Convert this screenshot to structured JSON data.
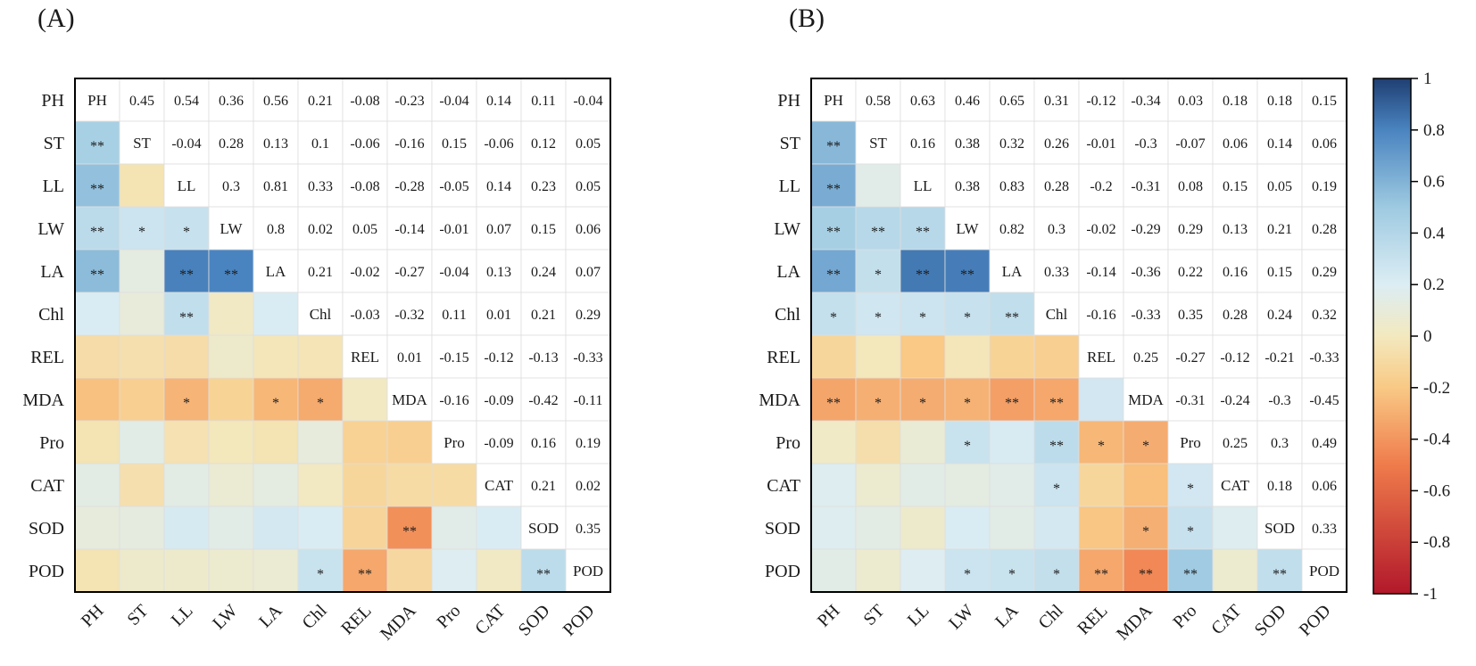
{
  "variables": [
    "PH",
    "ST",
    "LL",
    "LW",
    "LA",
    "Chl",
    "REL",
    "MDA",
    "Pro",
    "CAT",
    "SOD",
    "POD"
  ],
  "colorbar": {
    "ticks": [
      "1",
      "0.8",
      "0.6",
      "0.4",
      "0.2",
      "0",
      "-0.2",
      "-0.4",
      "-0.6",
      "-0.8",
      "-1"
    ],
    "stops": [
      {
        "v": -1.0,
        "color": "#b2182b"
      },
      {
        "v": -0.5,
        "color": "#ef7b4b"
      },
      {
        "v": -0.2,
        "color": "#f9c985"
      },
      {
        "v": 0.0,
        "color": "#f3e9bf"
      },
      {
        "v": 0.2,
        "color": "#dcedf4"
      },
      {
        "v": 0.5,
        "color": "#9ecae1"
      },
      {
        "v": 0.8,
        "color": "#4a84c0"
      },
      {
        "v": 1.0,
        "color": "#1f3f73"
      }
    ]
  },
  "chart_data": [
    {
      "type": "heatmap",
      "title": "(A)",
      "variables": [
        "PH",
        "ST",
        "LL",
        "LW",
        "LA",
        "Chl",
        "REL",
        "MDA",
        "Pro",
        "CAT",
        "SOD",
        "POD"
      ],
      "matrix": [
        [
          1,
          0.45,
          0.54,
          0.36,
          0.56,
          0.21,
          -0.08,
          -0.23,
          -0.04,
          0.14,
          0.11,
          -0.04
        ],
        [
          0.45,
          1,
          -0.04,
          0.28,
          0.13,
          0.1,
          -0.06,
          -0.16,
          0.15,
          -0.06,
          0.12,
          0.05
        ],
        [
          0.54,
          -0.04,
          1,
          0.3,
          0.81,
          0.33,
          -0.08,
          -0.28,
          -0.05,
          0.14,
          0.23,
          0.05
        ],
        [
          0.36,
          0.28,
          0.3,
          1,
          0.8,
          0.02,
          0.05,
          -0.14,
          -0.01,
          0.07,
          0.15,
          0.06
        ],
        [
          0.56,
          0.13,
          0.81,
          0.8,
          1,
          0.21,
          -0.02,
          -0.27,
          -0.04,
          0.13,
          0.24,
          0.07
        ],
        [
          0.21,
          0.1,
          0.33,
          0.02,
          0.21,
          1,
          -0.03,
          -0.32,
          0.11,
          0.01,
          0.21,
          0.29
        ],
        [
          -0.08,
          -0.06,
          -0.08,
          0.05,
          -0.02,
          -0.03,
          1,
          0.01,
          -0.15,
          -0.12,
          -0.13,
          -0.33
        ],
        [
          -0.23,
          -0.16,
          -0.28,
          -0.14,
          -0.27,
          -0.32,
          0.01,
          1,
          -0.16,
          -0.09,
          -0.42,
          -0.11
        ],
        [
          -0.04,
          0.15,
          -0.05,
          -0.01,
          -0.04,
          0.11,
          -0.15,
          -0.16,
          1,
          -0.09,
          0.16,
          0.19
        ],
        [
          0.14,
          -0.06,
          0.14,
          0.07,
          0.13,
          0.01,
          -0.12,
          -0.09,
          -0.09,
          1,
          0.21,
          0.02
        ],
        [
          0.11,
          0.12,
          0.23,
          0.15,
          0.24,
          0.21,
          -0.13,
          -0.42,
          0.16,
          0.21,
          1,
          0.35
        ],
        [
          -0.04,
          0.05,
          0.05,
          0.06,
          0.07,
          0.29,
          -0.33,
          -0.11,
          0.19,
          0.02,
          0.35,
          1
        ]
      ],
      "significance": [
        [
          "",
          "",
          "",
          "",
          "",
          "",
          "",
          "",
          "",
          "",
          "",
          ""
        ],
        [
          "**",
          "",
          "",
          "",
          "",
          "",
          "",
          "",
          "",
          "",
          "",
          ""
        ],
        [
          "**",
          "",
          "",
          "",
          "",
          "",
          "",
          "",
          "",
          "",
          "",
          ""
        ],
        [
          "**",
          "*",
          "*",
          "",
          "",
          "",
          "",
          "",
          "",
          "",
          "",
          ""
        ],
        [
          "**",
          "",
          "**",
          "**",
          "",
          "",
          "",
          "",
          "",
          "",
          "",
          ""
        ],
        [
          "",
          "",
          "**",
          "",
          "",
          "",
          "",
          "",
          "",
          "",
          "",
          ""
        ],
        [
          "",
          "",
          "",
          "",
          "",
          "",
          "",
          "",
          "",
          "",
          "",
          ""
        ],
        [
          "",
          "",
          "*",
          "",
          "*",
          "*",
          "",
          "",
          "",
          "",
          "",
          ""
        ],
        [
          "",
          "",
          "",
          "",
          "",
          "",
          "",
          "",
          "",
          "",
          "",
          ""
        ],
        [
          "",
          "",
          "",
          "",
          "",
          "",
          "",
          "",
          "",
          "",
          "",
          ""
        ],
        [
          "",
          "",
          "",
          "",
          "",
          "",
          "",
          "**",
          "",
          "",
          "",
          ""
        ],
        [
          "",
          "",
          "",
          "",
          "",
          "*",
          "**",
          "",
          "",
          "",
          "**",
          ""
        ]
      ],
      "ylim": [
        -1,
        1
      ]
    },
    {
      "type": "heatmap",
      "title": "(B)",
      "variables": [
        "PH",
        "ST",
        "LL",
        "LW",
        "LA",
        "Chl",
        "REL",
        "MDA",
        "Pro",
        "CAT",
        "SOD",
        "POD"
      ],
      "matrix": [
        [
          1,
          0.58,
          0.63,
          0.46,
          0.65,
          0.31,
          -0.12,
          -0.34,
          0.03,
          0.18,
          0.18,
          0.15
        ],
        [
          0.58,
          1,
          0.16,
          0.38,
          0.32,
          0.26,
          -0.01,
          -0.3,
          -0.07,
          0.06,
          0.14,
          0.06
        ],
        [
          0.63,
          0.16,
          1,
          0.38,
          0.83,
          0.28,
          -0.2,
          -0.31,
          0.08,
          0.15,
          0.05,
          0.19
        ],
        [
          0.46,
          0.38,
          0.38,
          1,
          0.82,
          0.3,
          -0.02,
          -0.29,
          0.29,
          0.13,
          0.21,
          0.28
        ],
        [
          0.65,
          0.32,
          0.83,
          0.82,
          1,
          0.33,
          -0.14,
          -0.36,
          0.22,
          0.16,
          0.15,
          0.29
        ],
        [
          0.31,
          0.26,
          0.28,
          0.3,
          0.33,
          1,
          -0.16,
          -0.33,
          0.35,
          0.28,
          0.24,
          0.32
        ],
        [
          -0.12,
          -0.01,
          -0.2,
          -0.02,
          -0.14,
          -0.16,
          1,
          0.25,
          -0.27,
          -0.12,
          -0.21,
          -0.33
        ],
        [
          -0.34,
          -0.3,
          -0.31,
          -0.29,
          -0.36,
          -0.33,
          0.25,
          1,
          -0.31,
          -0.24,
          -0.3,
          -0.45
        ],
        [
          0.03,
          -0.07,
          0.08,
          0.29,
          0.22,
          0.35,
          -0.27,
          -0.31,
          1,
          0.25,
          0.3,
          0.49
        ],
        [
          0.18,
          0.06,
          0.15,
          0.13,
          0.16,
          0.28,
          -0.12,
          -0.24,
          0.25,
          1,
          0.18,
          0.06
        ],
        [
          0.18,
          0.14,
          0.05,
          0.21,
          0.15,
          0.24,
          -0.21,
          -0.3,
          0.3,
          0.18,
          1,
          0.33
        ],
        [
          0.15,
          0.06,
          0.19,
          0.28,
          0.29,
          0.32,
          -0.33,
          -0.45,
          0.49,
          0.06,
          0.33,
          1
        ]
      ],
      "significance": [
        [
          "",
          "",
          "",
          "",
          "",
          "",
          "",
          "",
          "",
          "",
          "",
          ""
        ],
        [
          "**",
          "",
          "",
          "",
          "",
          "",
          "",
          "",
          "",
          "",
          "",
          ""
        ],
        [
          "**",
          "",
          "",
          "",
          "",
          "",
          "",
          "",
          "",
          "",
          "",
          ""
        ],
        [
          "**",
          "**",
          "**",
          "",
          "",
          "",
          "",
          "",
          "",
          "",
          "",
          ""
        ],
        [
          "**",
          "*",
          "**",
          "**",
          "",
          "",
          "",
          "",
          "",
          "",
          "",
          ""
        ],
        [
          "*",
          "*",
          "*",
          "*",
          "**",
          "",
          "",
          "",
          "",
          "",
          "",
          ""
        ],
        [
          "",
          "",
          "",
          "",
          "",
          "",
          "",
          "",
          "",
          "",
          "",
          ""
        ],
        [
          "**",
          "*",
          "*",
          "*",
          "**",
          "**",
          "",
          "",
          "",
          "",
          "",
          ""
        ],
        [
          "",
          "",
          "",
          "*",
          "",
          "**",
          "*",
          "*",
          "",
          "",
          "",
          ""
        ],
        [
          "",
          "",
          "",
          "",
          "",
          "*",
          "",
          "",
          "*",
          "",
          "",
          ""
        ],
        [
          "",
          "",
          "",
          "",
          "",
          "",
          "",
          "*",
          "*",
          "",
          "",
          ""
        ],
        [
          "",
          "",
          "",
          "*",
          "*",
          "*",
          "**",
          "**",
          "**",
          "",
          "**",
          ""
        ]
      ],
      "ylim": [
        -1,
        1
      ]
    }
  ]
}
